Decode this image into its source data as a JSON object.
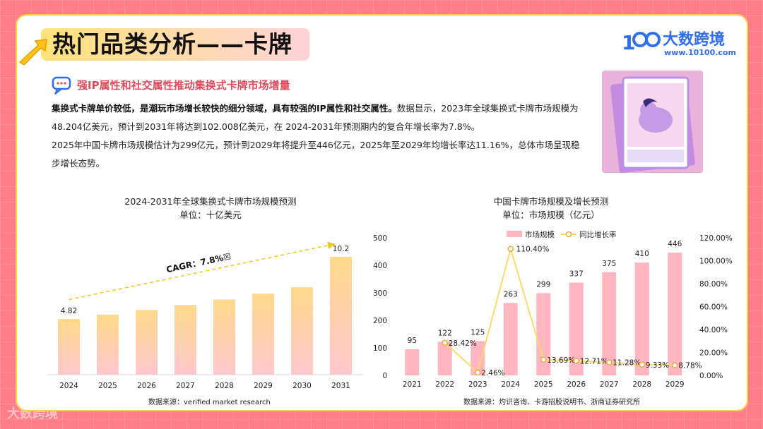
{
  "page": {
    "title": "热门品类分析——卡牌",
    "logo_name": "大数跨境",
    "logo_url": "www.10100.com",
    "corner_logo": "大数跨境",
    "subtitle": "强IP属性和社交属性推动集换式卡牌市场增量",
    "para_bold": "集换式卡牌单价较低，是潮玩市场增长较快的细分领域，具有较强的IP属性和社交属性。",
    "para_rest1": "数据显示，2023年全球集换式卡牌市场规模为48.204亿美元，预计到2031年将达到102.008亿美元，在 2024-2031年预测期内的复合年增长率为7.8%。",
    "para_rest2": "2025年中国卡牌市场规模估计为299亿元，预计到2029年将提升至446亿元，2025年至2029年均增长率达11.16%，总体市场呈现稳步增长态势。",
    "icons": [
      "chat-bubble-icon",
      "arrow-pointer-icon",
      "logo-icon"
    ]
  },
  "chart_data": [
    {
      "type": "bar",
      "title": "2024-2031年全球集换式卡牌市场规模预测",
      "subtitle": "单位：十亿美元",
      "categories": [
        "2024",
        "2025",
        "2026",
        "2027",
        "2028",
        "2029",
        "2030",
        "2031"
      ],
      "values": [
        4.82,
        5.2,
        5.6,
        6.04,
        6.51,
        7.02,
        7.57,
        10.2
      ],
      "data_labels": {
        "0": "4.82",
        "7": "10.2"
      },
      "annotation": "CAGR：7.8%☒",
      "ylim": [
        0,
        11
      ],
      "source": "数据来源：verified market research",
      "colors": {
        "bar_top": "#ffd98a",
        "bar_bottom": "#ffc8cf",
        "arrow": "#f5c518"
      }
    },
    {
      "type": "bar",
      "title": "中国卡牌市场规模及增长预测",
      "subtitle": "单位：市场规模（亿元）",
      "categories": [
        "2021",
        "2022",
        "2023",
        "2024",
        "2025",
        "2026",
        "2027",
        "2028",
        "2029"
      ],
      "series": [
        {
          "name": "市场规模",
          "type": "bar",
          "values": [
            95,
            122,
            125,
            263,
            299,
            337,
            375,
            410,
            446
          ]
        },
        {
          "name": "同比增长率",
          "type": "line",
          "values": [
            null,
            28.42,
            2.46,
            110.4,
            13.69,
            12.71,
            11.28,
            9.33,
            8.78
          ],
          "labels": [
            "",
            "28.42%",
            "2.46%",
            "110.40%",
            "13.69%",
            "12.71%",
            "11.28%",
            "9.33%",
            "8.78%"
          ]
        }
      ],
      "y_left": {
        "ticks": [
          "0",
          "100",
          "200",
          "300",
          "400",
          "500"
        ],
        "lim": [
          0,
          500
        ]
      },
      "y_right": {
        "ticks": [
          "0.00%",
          "20.00%",
          "40.00%",
          "60.00%",
          "80.00%",
          "100.00%",
          "120.00%"
        ],
        "lim": [
          0,
          120
        ]
      },
      "legend": "top",
      "source": "数据来源：灼识咨询、卡游招股说明书、浙商证券研究所",
      "colors": {
        "bar": "#ffb6c1",
        "line": "#ffd966",
        "marker_edge": "#f0a830"
      }
    }
  ]
}
